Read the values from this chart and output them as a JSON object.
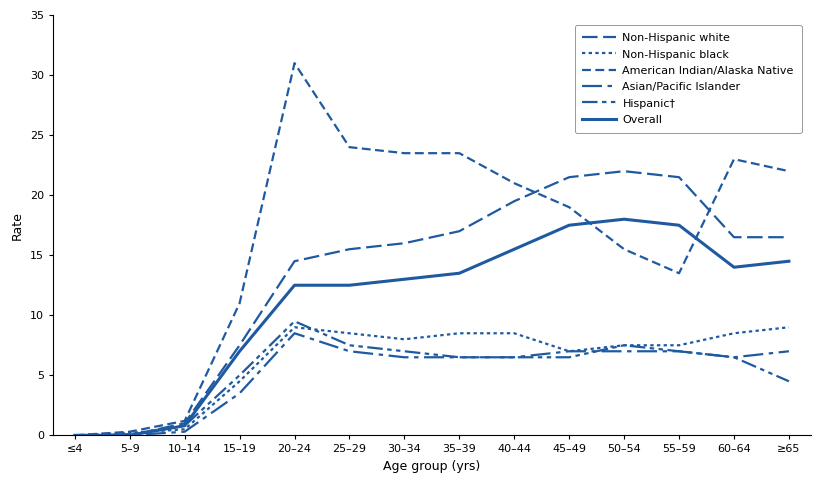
{
  "age_groups": [
    "≤4",
    "5–9",
    "10–14",
    "15–19",
    "20–24",
    "25–29",
    "30–34",
    "35–39",
    "40–44",
    "45–49",
    "50–54",
    "55–59",
    "60–64",
    "≥65"
  ],
  "non_hispanic_white": [
    0.0,
    0.0,
    1.0,
    7.5,
    14.5,
    15.5,
    16.0,
    17.0,
    19.5,
    21.5,
    22.0,
    21.5,
    16.5,
    16.5
  ],
  "non_hispanic_black": [
    0.0,
    0.2,
    0.5,
    4.5,
    9.0,
    8.5,
    8.0,
    8.5,
    8.5,
    7.0,
    7.5,
    7.5,
    8.5,
    9.0
  ],
  "american_indian": [
    0.0,
    0.3,
    1.2,
    11.0,
    31.0,
    24.0,
    23.5,
    23.5,
    21.0,
    19.0,
    15.5,
    13.5,
    23.0,
    22.0
  ],
  "asian_pacific": [
    0.0,
    0.0,
    0.3,
    3.5,
    8.5,
    7.0,
    6.5,
    6.5,
    6.5,
    7.0,
    7.0,
    7.0,
    6.5,
    7.0
  ],
  "hispanic": [
    0.0,
    0.1,
    0.8,
    5.0,
    9.5,
    7.5,
    7.0,
    6.5,
    6.5,
    6.5,
    7.5,
    7.0,
    6.5,
    4.5
  ],
  "overall": [
    0.0,
    0.0,
    0.8,
    7.0,
    12.5,
    12.5,
    13.0,
    13.5,
    15.5,
    17.5,
    18.0,
    17.5,
    14.0,
    14.5
  ],
  "color": "#1f5aa0",
  "ylabel": "Rate",
  "xlabel": "Age group (yrs)",
  "ylim": [
    0,
    35
  ],
  "yticks": [
    0,
    5,
    10,
    15,
    20,
    25,
    30,
    35
  ],
  "legend_labels": [
    "Non-Hispanic white",
    "Non-Hispanic black",
    "American Indian/Alaska Native",
    "Asian/Pacific Islander",
    "Hispanic†",
    "Overall"
  ]
}
